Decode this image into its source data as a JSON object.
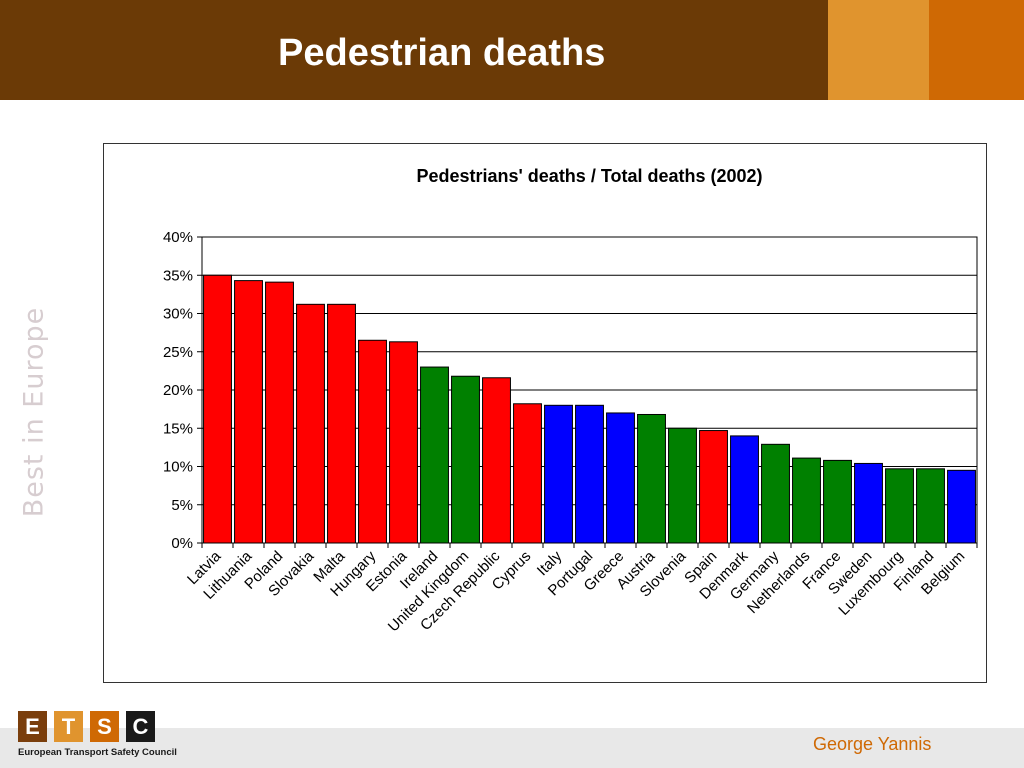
{
  "slide": {
    "title": "Pedestrian deaths",
    "side_text": "Best in Europe",
    "author": "George Yannis"
  },
  "logo": {
    "letters": [
      "E",
      "T",
      "S",
      "C"
    ],
    "letter_colors": [
      "#7a3e0c",
      "#e0942e",
      "#cf6904",
      "#1a1a1a"
    ],
    "caption": "European Transport Safety Council"
  },
  "colors": {
    "header": "#6b3a06",
    "accent_light": "#e0942e",
    "accent_dark": "#cf6904",
    "bar_red": "#ff0000",
    "bar_green": "#008000",
    "bar_blue": "#0000ff"
  },
  "chart_data": {
    "type": "bar",
    "title": "Pedestrians' deaths / Total deaths (2002)",
    "xlabel": "",
    "ylabel": "",
    "ylim": [
      0,
      0.4
    ],
    "y_ticks": [
      "0%",
      "5%",
      "10%",
      "15%",
      "20%",
      "25%",
      "30%",
      "35%",
      "40%"
    ],
    "grid": true,
    "categories": [
      "Latvia",
      "Lithuania",
      "Poland",
      "Slovakia",
      "Malta",
      "Hungary",
      "Estonia",
      "Ireland",
      "United Kingdom",
      "Czech Republic",
      "Cyprus",
      "Italy",
      "Portugal",
      "Greece",
      "Austria",
      "Slovenia",
      "Spain",
      "Denmark",
      "Germany",
      "Netherlands",
      "France",
      "Sweden",
      "Luxembourg",
      "Finland",
      "Belgium"
    ],
    "values": [
      0.35,
      0.343,
      0.341,
      0.312,
      0.312,
      0.265,
      0.263,
      0.23,
      0.218,
      0.216,
      0.182,
      0.18,
      0.18,
      0.17,
      0.168,
      0.15,
      0.147,
      0.14,
      0.129,
      0.111,
      0.108,
      0.104,
      0.097,
      0.097,
      0.095
    ],
    "bar_colors": [
      "red",
      "red",
      "red",
      "red",
      "red",
      "red",
      "red",
      "green",
      "green",
      "red",
      "red",
      "blue",
      "blue",
      "blue",
      "green",
      "green",
      "red",
      "blue",
      "green",
      "green",
      "green",
      "blue",
      "green",
      "green",
      "blue"
    ]
  }
}
